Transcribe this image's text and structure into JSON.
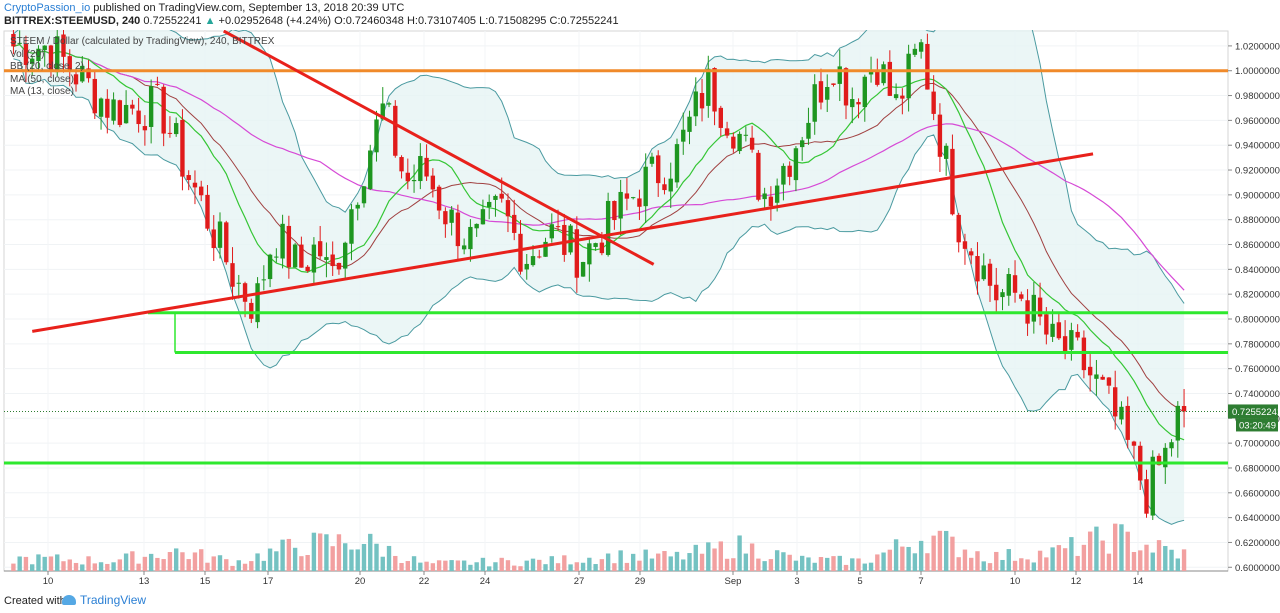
{
  "header": {
    "author": "CryptoPassion_io",
    "published_text": "published on TradingView.com, September 13, 2018 20:39 UTC",
    "symbol": "BITTREX:STEEMUSD, 240",
    "last": "0.72552241",
    "change": "+0.02952648 (+4.24%)",
    "open_label": "O:",
    "open": "0.72460348",
    "high_label": "H:",
    "high": "0.73107405",
    "low_label": "L:",
    "low": "0.71508295",
    "close_label": "C:",
    "close": "0.72552241"
  },
  "legend": {
    "line1": "STEEM / Dollar (calculated by TradingView), 240, BITTREX",
    "line2": "Vol (20)",
    "line3": "BB (20, close, 2)",
    "line4": "MA (50, close)",
    "line5": "MA (13, close)"
  },
  "footer": {
    "created_with": "Created with",
    "brand": "TradingView"
  },
  "colors": {
    "up": "#26a69a",
    "down": "#ef5350",
    "bull_candle": "#1e9620",
    "bear_candle": "#e01b1b",
    "trendline": "#e8211b",
    "support": "#2ee82e",
    "resistance": "#f08a2a",
    "bb": "#4a9aa0",
    "bb_fill": "#e6f4f4",
    "ma50": "#d64ad6",
    "ma13": "#35c635",
    "bb_basis": "#a04040",
    "vol_up": "#74c2c2",
    "vol_down": "#f2a0a0"
  },
  "chart_data": {
    "type": "candlestick",
    "y_axis_ticks": [
      "1.02000000",
      "1.00000000",
      "0.98000000",
      "0.96000000",
      "0.94000000",
      "0.92000000",
      "0.90000000",
      "0.88000000",
      "0.86000000",
      "0.84000000",
      "0.82000000",
      "0.80000000",
      "0.78000000",
      "0.76000000",
      "0.74000000",
      "0.72000000",
      "0.70000000",
      "0.68000000",
      "0.66000000",
      "0.64000000",
      "0.62000000",
      "0.60000000"
    ],
    "x_axis_ticks": [
      "10",
      "13",
      "15",
      "17",
      "20",
      "22",
      "24",
      "27",
      "29",
      "Sep",
      "3",
      "5",
      "7",
      "10",
      "12",
      "14"
    ],
    "ylim": [
      0.597,
      1.032
    ],
    "last_price_label": "0.72552241",
    "countdown_label": "03:20:49",
    "horizontal_levels": [
      {
        "kind": "resistance",
        "price": 1.0
      },
      {
        "kind": "support",
        "price": 0.805
      },
      {
        "kind": "support",
        "price": 0.773
      },
      {
        "kind": "support",
        "price": 0.684
      }
    ],
    "trendlines": [
      {
        "from": [
          -0.25,
          0.79
        ],
        "to": [
          16.65,
          0.933
        ]
      },
      {
        "from": [
          2.8,
          1.032
        ],
        "to": [
          9.65,
          0.844
        ]
      }
    ],
    "anchors": [
      [
        0,
        1.02
      ],
      [
        1,
        0.97
      ],
      [
        1.8,
        0.97
      ],
      [
        2.2,
        0.92
      ],
      [
        3,
        0.83
      ],
      [
        3.3,
        0.81
      ],
      [
        3.6,
        0.87
      ],
      [
        4,
        0.84
      ],
      [
        4.3,
        0.86
      ],
      [
        4.5,
        0.83
      ],
      [
        5,
        0.92
      ],
      [
        5.35,
        0.97
      ],
      [
        5.7,
        0.91
      ],
      [
        6,
        0.92
      ],
      [
        6.4,
        0.88
      ],
      [
        6.8,
        0.86
      ],
      [
        7.2,
        0.89
      ],
      [
        7.6,
        0.85
      ],
      [
        8,
        0.87
      ],
      [
        8.5,
        0.85
      ],
      [
        9,
        0.88
      ],
      [
        9.5,
        0.91
      ],
      [
        10,
        0.93
      ],
      [
        10.5,
        0.99
      ],
      [
        11,
        0.95
      ],
      [
        11.4,
        0.9
      ],
      [
        11.8,
        0.93
      ],
      [
        12.5,
        1.01
      ],
      [
        12.8,
        0.98
      ],
      [
        13.2,
        1.01
      ],
      [
        13.5,
        0.97
      ],
      [
        13.9,
        1.02
      ],
      [
        14.2,
        0.95
      ],
      [
        14.5,
        0.88
      ],
      [
        14.8,
        0.85
      ],
      [
        15.1,
        0.82
      ],
      [
        15.5,
        0.82
      ],
      [
        16,
        0.78
      ],
      [
        16.4,
        0.77
      ],
      [
        16.8,
        0.74
      ],
      [
        17.1,
        0.71
      ],
      [
        17.5,
        0.66
      ],
      [
        17.8,
        0.69
      ],
      [
        18.0,
        0.72
      ],
      [
        18.1,
        0.725
      ]
    ],
    "volume_profile": [
      [
        0,
        0.12
      ],
      [
        1,
        0.1
      ],
      [
        2,
        0.2
      ],
      [
        3,
        0.09
      ],
      [
        4,
        0.26
      ],
      [
        5,
        0.3
      ],
      [
        6,
        0.07
      ],
      [
        7,
        0.09
      ],
      [
        8,
        0.1
      ],
      [
        9,
        0.15
      ],
      [
        10,
        0.14
      ],
      [
        11,
        0.25
      ],
      [
        12,
        0.11
      ],
      [
        13,
        0.1
      ],
      [
        14,
        0.35
      ],
      [
        15,
        0.14
      ],
      [
        16,
        0.18
      ],
      [
        17,
        0.35
      ],
      [
        18,
        0.17
      ]
    ],
    "x_domain_days": [
      -0.7,
      18.8
    ]
  }
}
